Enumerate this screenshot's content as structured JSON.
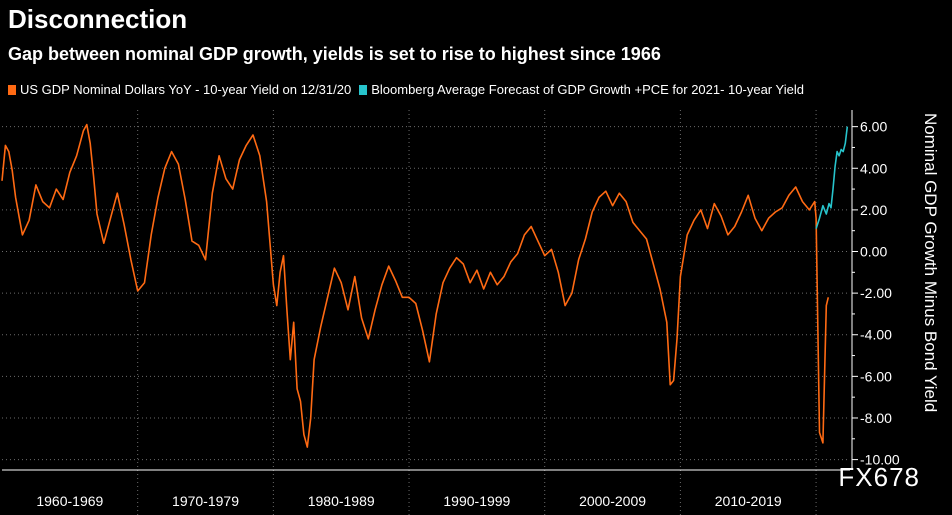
{
  "header": {
    "title": "Disconnection",
    "subtitle": "Gap between nominal GDP growth, yields is set to rise to highest since 1966"
  },
  "watermark": "FX678",
  "colors": {
    "history": "#ff6a13",
    "forecast": "#27c4cc",
    "grid": "#6b6b6b"
  },
  "chart_data": {
    "type": "line",
    "ylabel": "Nominal GDP Growth Minus Bond Yield",
    "ylim": [
      -10.5,
      6.8
    ],
    "yticks": [
      6.0,
      4.0,
      2.0,
      0.0,
      -2.0,
      -4.0,
      -6.0,
      -8.0,
      -10.0
    ],
    "ytick_labels": [
      "6.00",
      "4.00",
      "2.00",
      "0.00",
      "-2.00",
      "-4.00",
      "-6.00",
      "-8.00",
      "-10.00"
    ],
    "x_decades": [
      "1960-1969",
      "1970-1979",
      "1980-1989",
      "1990-1999",
      "2000-2009",
      "2010-2019"
    ],
    "xlim": [
      1960,
      2022.5
    ],
    "grid": true,
    "legend_position": "top",
    "series": [
      {
        "name": "US GDP Nominal Dollars YoY - 10-year Yield on 12/31/20",
        "color_key": "history",
        "points": [
          [
            1960.0,
            3.4
          ],
          [
            1960.25,
            5.1
          ],
          [
            1960.5,
            4.8
          ],
          [
            1960.75,
            3.9
          ],
          [
            1961.0,
            2.6
          ],
          [
            1961.5,
            0.8
          ],
          [
            1962.0,
            1.5
          ],
          [
            1962.5,
            3.2
          ],
          [
            1963.0,
            2.4
          ],
          [
            1963.5,
            2.1
          ],
          [
            1964.0,
            3.0
          ],
          [
            1964.5,
            2.5
          ],
          [
            1965.0,
            3.8
          ],
          [
            1965.5,
            4.6
          ],
          [
            1966.0,
            5.8
          ],
          [
            1966.25,
            6.1
          ],
          [
            1966.5,
            5.2
          ],
          [
            1966.75,
            3.6
          ],
          [
            1967.0,
            1.8
          ],
          [
            1967.5,
            0.4
          ],
          [
            1968.0,
            1.6
          ],
          [
            1968.5,
            2.8
          ],
          [
            1969.0,
            1.3
          ],
          [
            1969.5,
            -0.4
          ],
          [
            1970.0,
            -1.9
          ],
          [
            1970.5,
            -1.5
          ],
          [
            1971.0,
            0.8
          ],
          [
            1971.5,
            2.6
          ],
          [
            1972.0,
            4.0
          ],
          [
            1972.5,
            4.8
          ],
          [
            1973.0,
            4.2
          ],
          [
            1973.5,
            2.5
          ],
          [
            1974.0,
            0.5
          ],
          [
            1974.5,
            0.3
          ],
          [
            1975.0,
            -0.4
          ],
          [
            1975.5,
            2.8
          ],
          [
            1976.0,
            4.6
          ],
          [
            1976.5,
            3.5
          ],
          [
            1977.0,
            3.0
          ],
          [
            1977.5,
            4.4
          ],
          [
            1978.0,
            5.1
          ],
          [
            1978.5,
            5.6
          ],
          [
            1979.0,
            4.6
          ],
          [
            1979.5,
            2.4
          ],
          [
            1980.0,
            -1.6
          ],
          [
            1980.25,
            -2.6
          ],
          [
            1980.5,
            -1.0
          ],
          [
            1980.75,
            -0.2
          ],
          [
            1981.0,
            -2.8
          ],
          [
            1981.25,
            -5.2
          ],
          [
            1981.5,
            -3.4
          ],
          [
            1981.75,
            -6.6
          ],
          [
            1982.0,
            -7.2
          ],
          [
            1982.25,
            -8.8
          ],
          [
            1982.5,
            -9.4
          ],
          [
            1982.75,
            -8.0
          ],
          [
            1983.0,
            -5.2
          ],
          [
            1983.5,
            -3.6
          ],
          [
            1984.0,
            -2.2
          ],
          [
            1984.5,
            -0.8
          ],
          [
            1985.0,
            -1.5
          ],
          [
            1985.5,
            -2.8
          ],
          [
            1986.0,
            -1.2
          ],
          [
            1986.5,
            -3.2
          ],
          [
            1987.0,
            -4.2
          ],
          [
            1987.5,
            -2.8
          ],
          [
            1988.0,
            -1.6
          ],
          [
            1988.5,
            -0.7
          ],
          [
            1989.0,
            -1.4
          ],
          [
            1989.5,
            -2.2
          ],
          [
            1990.0,
            -2.2
          ],
          [
            1990.5,
            -2.5
          ],
          [
            1991.0,
            -3.8
          ],
          [
            1991.5,
            -5.3
          ],
          [
            1992.0,
            -3.0
          ],
          [
            1992.5,
            -1.5
          ],
          [
            1993.0,
            -0.8
          ],
          [
            1993.5,
            -0.3
          ],
          [
            1994.0,
            -0.6
          ],
          [
            1994.5,
            -1.5
          ],
          [
            1995.0,
            -0.9
          ],
          [
            1995.5,
            -1.8
          ],
          [
            1996.0,
            -1.0
          ],
          [
            1996.5,
            -1.6
          ],
          [
            1997.0,
            -1.2
          ],
          [
            1997.5,
            -0.5
          ],
          [
            1998.0,
            -0.1
          ],
          [
            1998.5,
            0.8
          ],
          [
            1999.0,
            1.2
          ],
          [
            1999.5,
            0.5
          ],
          [
            2000.0,
            -0.2
          ],
          [
            2000.5,
            0.1
          ],
          [
            2001.0,
            -1.0
          ],
          [
            2001.5,
            -2.6
          ],
          [
            2002.0,
            -2.0
          ],
          [
            2002.5,
            -0.4
          ],
          [
            2003.0,
            0.6
          ],
          [
            2003.5,
            1.9
          ],
          [
            2004.0,
            2.6
          ],
          [
            2004.5,
            2.9
          ],
          [
            2005.0,
            2.2
          ],
          [
            2005.5,
            2.8
          ],
          [
            2006.0,
            2.4
          ],
          [
            2006.5,
            1.4
          ],
          [
            2007.0,
            1.0
          ],
          [
            2007.5,
            0.6
          ],
          [
            2008.0,
            -0.6
          ],
          [
            2008.5,
            -1.8
          ],
          [
            2009.0,
            -3.4
          ],
          [
            2009.25,
            -6.4
          ],
          [
            2009.5,
            -6.2
          ],
          [
            2009.75,
            -4.2
          ],
          [
            2010.0,
            -1.2
          ],
          [
            2010.5,
            0.8
          ],
          [
            2011.0,
            1.5
          ],
          [
            2011.5,
            2.0
          ],
          [
            2012.0,
            1.1
          ],
          [
            2012.5,
            2.3
          ],
          [
            2013.0,
            1.7
          ],
          [
            2013.5,
            0.8
          ],
          [
            2014.0,
            1.2
          ],
          [
            2014.5,
            1.9
          ],
          [
            2015.0,
            2.7
          ],
          [
            2015.5,
            1.6
          ],
          [
            2016.0,
            1.0
          ],
          [
            2016.5,
            1.6
          ],
          [
            2017.0,
            1.9
          ],
          [
            2017.5,
            2.1
          ],
          [
            2018.0,
            2.7
          ],
          [
            2018.5,
            3.1
          ],
          [
            2019.0,
            2.4
          ],
          [
            2019.5,
            2.0
          ],
          [
            2019.9,
            2.4
          ],
          [
            2020.0,
            1.6
          ],
          [
            2020.25,
            -8.7
          ],
          [
            2020.5,
            -9.2
          ],
          [
            2020.75,
            -2.6
          ],
          [
            2020.9,
            -2.2
          ]
        ]
      },
      {
        "name": "Bloomberg Average Forecast of GDP Growth +PCE for 2021- 10-year Yield",
        "color_key": "forecast",
        "points": [
          [
            2020.0,
            1.1
          ],
          [
            2020.25,
            1.6
          ],
          [
            2020.5,
            2.2
          ],
          [
            2020.75,
            1.8
          ],
          [
            2020.95,
            2.3
          ],
          [
            2021.1,
            2.1
          ],
          [
            2021.25,
            3.0
          ],
          [
            2021.4,
            4.1
          ],
          [
            2021.55,
            4.8
          ],
          [
            2021.7,
            4.6
          ],
          [
            2021.85,
            4.9
          ],
          [
            2022.0,
            4.8
          ],
          [
            2022.15,
            5.2
          ],
          [
            2022.3,
            6.0
          ]
        ]
      }
    ]
  }
}
